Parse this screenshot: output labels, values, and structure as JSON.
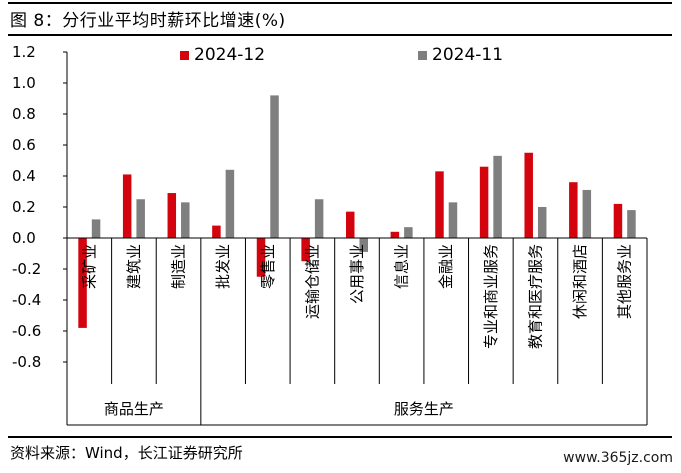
{
  "figure_title": "图 8：分行业平均时薪环比增速(%)",
  "source_text": "资料来源：Wind，长江证券研究所",
  "watermark_text": "www.365jz.com",
  "colors": {
    "series_2024_12": "#d4040f",
    "series_2024_11": "#7f7f7f",
    "axis": "#000000"
  },
  "chart_data": {
    "type": "bar",
    "title": "",
    "xlabel": "",
    "ylabel": "",
    "ylim": [
      -0.8,
      1.2
    ],
    "yticks": [
      "1.2",
      "1.0",
      "0.8",
      "0.6",
      "0.4",
      "0.2",
      "0.0",
      "-0.2",
      "-0.4",
      "-0.6",
      "-0.8"
    ],
    "legend_position": "top",
    "categories": [
      "采矿业",
      "建筑业",
      "制造业",
      "批发业",
      "零售业",
      "运输仓储业",
      "公用事业",
      "信息业",
      "金融业",
      "专业和商业服务",
      "教育和医疗服务",
      "休闲和酒店",
      "其他服务业"
    ],
    "groups": [
      {
        "label": "商品生产",
        "count": 3
      },
      {
        "label": "服务生产",
        "count": 10
      }
    ],
    "series": [
      {
        "name": "2024-12",
        "values": [
          -0.58,
          0.41,
          0.29,
          0.08,
          -0.25,
          -0.15,
          0.17,
          0.04,
          0.43,
          0.46,
          0.55,
          0.36,
          0.22
        ]
      },
      {
        "name": "2024-11",
        "values": [
          0.12,
          0.25,
          0.23,
          0.44,
          0.92,
          0.25,
          -0.09,
          0.07,
          0.23,
          0.53,
          0.2,
          0.31,
          0.18
        ]
      }
    ]
  }
}
